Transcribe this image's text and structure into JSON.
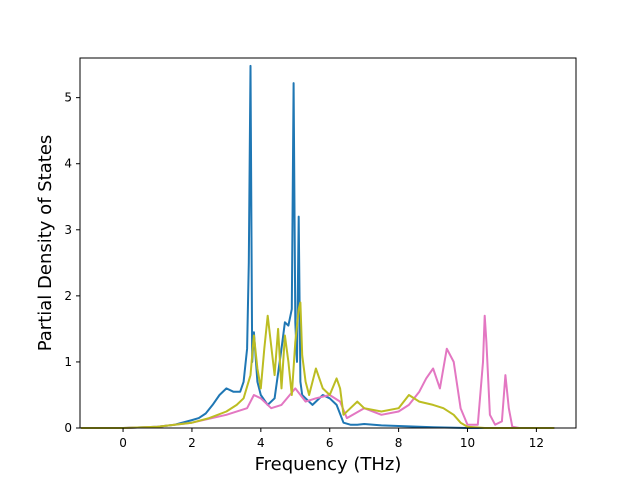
{
  "chart_data": {
    "type": "line",
    "title": "",
    "xlabel": "Frequency (THz)",
    "ylabel": "Partial Density of States",
    "xlim": [
      -1.25,
      13.15
    ],
    "ylim": [
      0,
      5.6
    ],
    "xticks": [
      0,
      2,
      4,
      6,
      8,
      10,
      12
    ],
    "yticks": [
      0,
      1,
      2,
      3,
      4,
      5
    ],
    "grid": false,
    "legend": "none",
    "colors": [
      "#1f77b4",
      "#e377c2",
      "#bcbd22"
    ],
    "series": [
      {
        "color": "#1f77b4",
        "x": [
          -1.2,
          0,
          1.0,
          1.5,
          2.0,
          2.2,
          2.4,
          2.6,
          2.8,
          3.0,
          3.2,
          3.4,
          3.5,
          3.6,
          3.65,
          3.7,
          3.75,
          3.8,
          3.9,
          4.0,
          4.2,
          4.4,
          4.6,
          4.7,
          4.8,
          4.9,
          4.95,
          5.0,
          5.05,
          5.1,
          5.15,
          5.2,
          5.3,
          5.5,
          5.8,
          6.0,
          6.2,
          6.4,
          6.6,
          6.8,
          7.0,
          7.5,
          8.0,
          9.0,
          10.0,
          11.0,
          12.5
        ],
        "y": [
          0,
          0,
          0.02,
          0.05,
          0.12,
          0.15,
          0.22,
          0.35,
          0.5,
          0.6,
          0.55,
          0.55,
          0.7,
          1.2,
          2.5,
          5.48,
          1.0,
          1.45,
          0.7,
          0.5,
          0.35,
          0.45,
          1.2,
          1.6,
          1.55,
          1.8,
          5.22,
          1.6,
          1.0,
          3.2,
          0.7,
          0.5,
          0.45,
          0.35,
          0.5,
          0.45,
          0.35,
          0.08,
          0.05,
          0.05,
          0.06,
          0.04,
          0.03,
          0.01,
          0,
          0,
          0
        ]
      },
      {
        "color": "#e377c2",
        "x": [
          -1.2,
          0,
          1.0,
          2.0,
          3.0,
          3.6,
          3.8,
          4.0,
          4.3,
          4.6,
          5.0,
          5.3,
          5.6,
          6.0,
          6.3,
          6.5,
          7.0,
          7.5,
          8.0,
          8.3,
          8.6,
          8.8,
          9.0,
          9.2,
          9.4,
          9.6,
          9.8,
          10.0,
          10.3,
          10.45,
          10.5,
          10.55,
          10.65,
          10.8,
          11.0,
          11.1,
          11.2,
          11.3,
          11.5,
          12.5
        ],
        "y": [
          0,
          0,
          0.02,
          0.08,
          0.2,
          0.3,
          0.5,
          0.45,
          0.3,
          0.35,
          0.6,
          0.4,
          0.45,
          0.5,
          0.4,
          0.15,
          0.3,
          0.2,
          0.25,
          0.35,
          0.55,
          0.75,
          0.9,
          0.6,
          1.2,
          1.0,
          0.3,
          0.05,
          0.05,
          1.0,
          1.7,
          1.3,
          0.2,
          0.05,
          0.1,
          0.8,
          0.3,
          0.02,
          0,
          0
        ]
      },
      {
        "color": "#bcbd22",
        "x": [
          -1.2,
          0,
          1.0,
          2.0,
          2.5,
          3.0,
          3.3,
          3.5,
          3.7,
          3.8,
          3.9,
          4.0,
          4.1,
          4.2,
          4.4,
          4.5,
          4.6,
          4.7,
          4.8,
          4.9,
          5.0,
          5.1,
          5.15,
          5.2,
          5.3,
          5.4,
          5.6,
          5.8,
          6.0,
          6.2,
          6.3,
          6.4,
          6.6,
          6.8,
          7.0,
          7.5,
          8.0,
          8.3,
          8.6,
          9.0,
          9.3,
          9.6,
          9.8,
          10.0,
          10.5,
          11.0,
          12.5
        ],
        "y": [
          0,
          0,
          0.02,
          0.08,
          0.15,
          0.25,
          0.35,
          0.45,
          0.8,
          1.4,
          0.9,
          0.6,
          1.2,
          1.7,
          0.8,
          1.5,
          0.6,
          1.4,
          1.0,
          0.5,
          1.3,
          1.8,
          1.9,
          1.1,
          0.7,
          0.5,
          0.9,
          0.6,
          0.5,
          0.75,
          0.6,
          0.2,
          0.3,
          0.4,
          0.3,
          0.25,
          0.3,
          0.5,
          0.4,
          0.35,
          0.3,
          0.2,
          0.08,
          0.02,
          0,
          0,
          0
        ]
      }
    ]
  }
}
